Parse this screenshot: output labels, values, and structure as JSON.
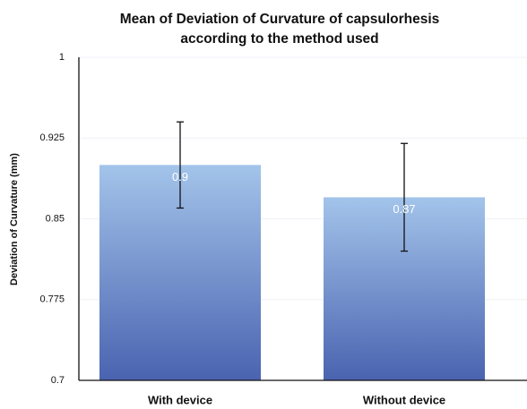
{
  "chart_data": {
    "type": "bar",
    "title": [
      "Mean of Deviation of Curvature of capsulorhesis",
      "according to the method used"
    ],
    "y_label": "Deviation of Curvature (mm)",
    "categories": [
      "With device",
      "Without device"
    ],
    "values": [
      0.9,
      0.87
    ],
    "errors": [
      0.04,
      0.05
    ],
    "color": [
      "#a3c4ea",
      "#4a63b0"
    ],
    "ylim": [
      0.7,
      1
    ],
    "yticks": [
      0.7,
      0.775,
      0.85,
      0.925,
      1
    ],
    "grid": true
  }
}
